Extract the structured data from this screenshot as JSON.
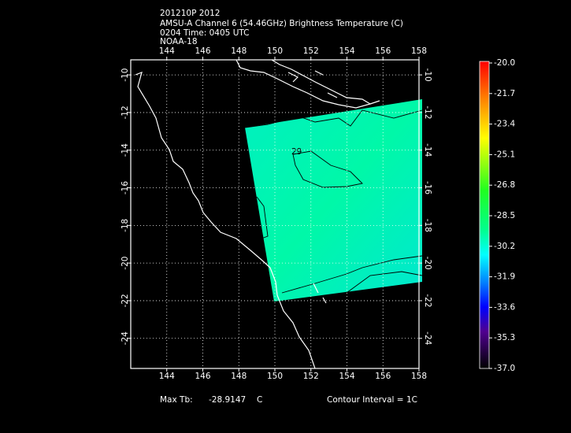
{
  "header": {
    "lines": [
      "201210P 2012",
      "AMSU-A Channel 6 (54.46GHz) Brightness Temperature (C)",
      "0204 Time: 0405 UTC",
      "NOAA-18"
    ]
  },
  "map": {
    "xlim": [
      142,
      158
    ],
    "ylim": [
      -25.6,
      -9.2
    ],
    "xticks": [
      144,
      146,
      148,
      150,
      152,
      154,
      156,
      158
    ],
    "yticks": [
      -10,
      -12,
      -14,
      -16,
      -18,
      -20,
      -22,
      -24
    ],
    "contour_label": "29"
  },
  "colorbar": {
    "range": [
      -37,
      -20
    ],
    "ticks": [
      {
        "value": -20,
        "label": "-20.0"
      },
      {
        "value": -21.7,
        "label": "-21.7"
      },
      {
        "value": -23.4,
        "label": "-23.4"
      },
      {
        "value": -25.1,
        "label": "-25.1"
      },
      {
        "value": -26.8,
        "label": "-26.8"
      },
      {
        "value": -28.5,
        "label": "-28.5"
      },
      {
        "value": -30.2,
        "label": "-30.2"
      },
      {
        "value": -31.9,
        "label": "-31.9"
      },
      {
        "value": -33.6,
        "label": "-33.6"
      },
      {
        "value": -35.3,
        "label": "-35.3"
      },
      {
        "value": -37,
        "label": "-37.0"
      }
    ]
  },
  "footer": {
    "max_label": "Max Tb:",
    "max_value": -28.9147,
    "unit": "C",
    "interval": "Contour Interval = 1C"
  }
}
